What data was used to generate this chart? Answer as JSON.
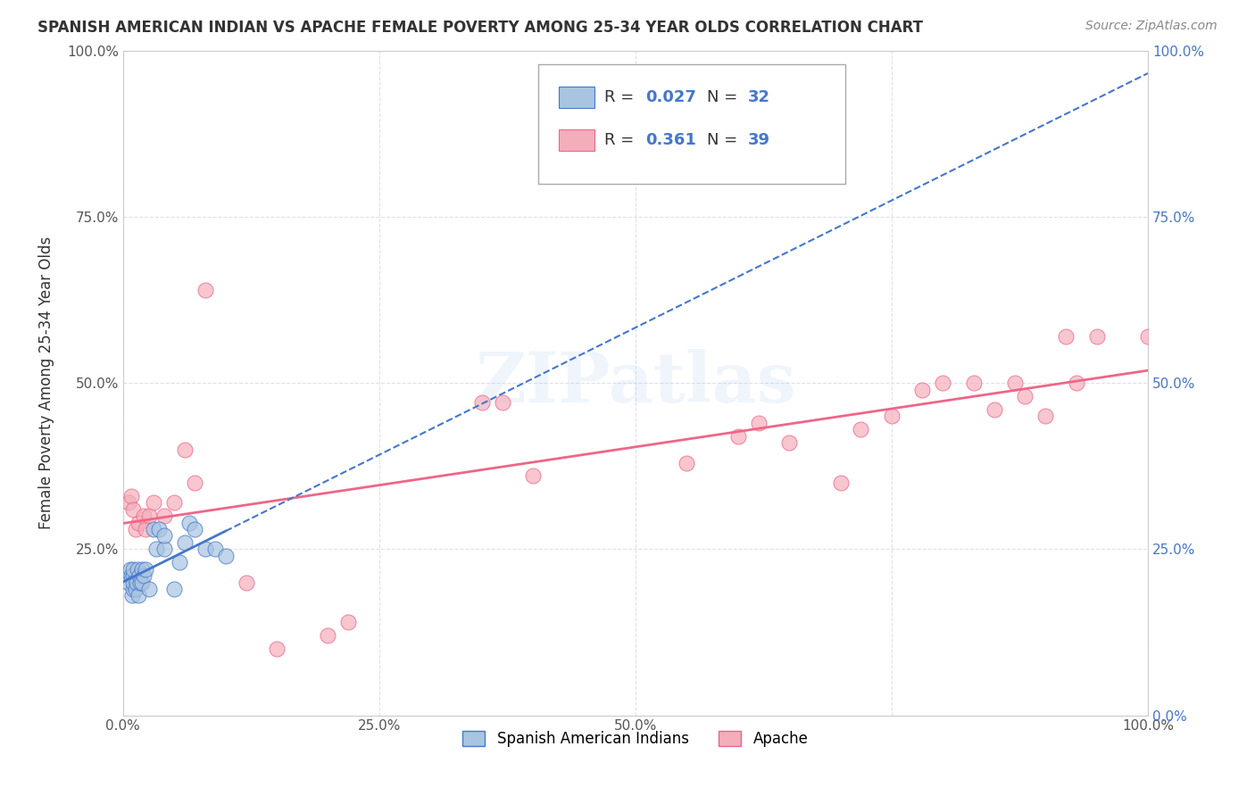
{
  "title": "SPANISH AMERICAN INDIAN VS APACHE FEMALE POVERTY AMONG 25-34 YEAR OLDS CORRELATION CHART",
  "source": "Source: ZipAtlas.com",
  "ylabel": "Female Poverty Among 25-34 Year Olds",
  "xlim": [
    0,
    1.0
  ],
  "ylim": [
    0,
    1.0
  ],
  "watermark": "ZIPatlas",
  "color_blue": "#A8C4E0",
  "color_pink": "#F4AEBB",
  "color_line_blue": "#4477CC",
  "color_line_pink": "#EE6688",
  "background_color": "#FFFFFF",
  "grid_color": "#E0E0EE",
  "blue_scatter_x": [
    0.005,
    0.007,
    0.008,
    0.009,
    0.01,
    0.01,
    0.01,
    0.01,
    0.012,
    0.013,
    0.014,
    0.015,
    0.016,
    0.017,
    0.018,
    0.018,
    0.02,
    0.022,
    0.025,
    0.03,
    0.032,
    0.035,
    0.04,
    0.04,
    0.05,
    0.055,
    0.06,
    0.065,
    0.07,
    0.08,
    0.09,
    0.1
  ],
  "blue_scatter_y": [
    0.2,
    0.22,
    0.21,
    0.18,
    0.19,
    0.21,
    0.22,
    0.2,
    0.19,
    0.2,
    0.22,
    0.18,
    0.21,
    0.2,
    0.22,
    0.2,
    0.21,
    0.22,
    0.19,
    0.28,
    0.25,
    0.28,
    0.25,
    0.27,
    0.19,
    0.23,
    0.26,
    0.29,
    0.28,
    0.25,
    0.25,
    0.24
  ],
  "pink_scatter_x": [
    0.005,
    0.008,
    0.01,
    0.012,
    0.015,
    0.02,
    0.022,
    0.025,
    0.03,
    0.04,
    0.05,
    0.06,
    0.07,
    0.08,
    0.12,
    0.15,
    0.2,
    0.22,
    0.35,
    0.37,
    0.4,
    0.55,
    0.6,
    0.62,
    0.65,
    0.7,
    0.72,
    0.75,
    0.78,
    0.8,
    0.83,
    0.85,
    0.87,
    0.88,
    0.9,
    0.92,
    0.93,
    0.95,
    1.0
  ],
  "pink_scatter_y": [
    0.32,
    0.33,
    0.31,
    0.28,
    0.29,
    0.3,
    0.28,
    0.3,
    0.32,
    0.3,
    0.32,
    0.4,
    0.35,
    0.64,
    0.2,
    0.1,
    0.12,
    0.14,
    0.47,
    0.47,
    0.36,
    0.38,
    0.42,
    0.44,
    0.41,
    0.35,
    0.43,
    0.45,
    0.49,
    0.5,
    0.5,
    0.46,
    0.5,
    0.48,
    0.45,
    0.57,
    0.5,
    0.57,
    0.57
  ]
}
